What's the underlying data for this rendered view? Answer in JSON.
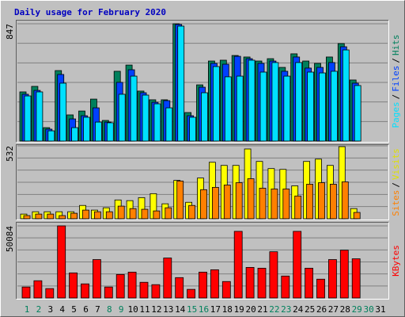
{
  "chart_data": [
    {
      "type": "bar",
      "title": "Daily usage for February 2020",
      "ylim": [
        0,
        847
      ],
      "yticks": [
        847
      ],
      "separator": "/",
      "series": [
        {
          "name": "Hits",
          "color": "#00805c",
          "values": [
            355,
            395,
            97,
            509,
            189,
            217,
            303,
            149,
            504,
            549,
            361,
            298,
            298,
            847,
            206,
            406,
            578,
            584,
            618,
            607,
            578,
            595,
            532,
            630,
            578,
            561,
            607,
            704,
            441,
            null,
            null
          ]
        },
        {
          "name": "Files",
          "color": "#0040ff",
          "values": [
            338,
            366,
            86,
            481,
            160,
            183,
            240,
            137,
            424,
            515,
            349,
            280,
            292,
            842,
            183,
            389,
            561,
            555,
            612,
            595,
            561,
            578,
            504,
            607,
            527,
            532,
            567,
            681,
            418,
            null,
            null
          ]
        },
        {
          "name": "Pages",
          "color": "#00e0ff",
          "values": [
            326,
            355,
            74,
            418,
            97,
            172,
            137,
            132,
            338,
            469,
            332,
            269,
            240,
            830,
            172,
            349,
            538,
            464,
            469,
            584,
            498,
            567,
            469,
            567,
            498,
            492,
            504,
            658,
            401,
            null,
            null
          ]
        }
      ]
    },
    {
      "type": "bar",
      "ylim": [
        0,
        532
      ],
      "yticks": [
        532
      ],
      "separator": "/",
      "series": [
        {
          "name": "Visits",
          "color": "#ffff00",
          "values": [
            34,
            51,
            51,
            51,
            51,
            97,
            63,
            80,
            137,
            132,
            154,
            183,
            109,
            280,
            120,
            297,
            412,
            389,
            389,
            509,
            418,
            366,
            360,
            240,
            418,
            435,
            389,
            526,
            74,
            null,
            null
          ]
        },
        {
          "name": "Sites",
          "color": "#ff8000",
          "values": [
            23,
            34,
            34,
            23,
            40,
            63,
            51,
            51,
            92,
            74,
            69,
            57,
            80,
            275,
            97,
            212,
            229,
            246,
            263,
            292,
            223,
            217,
            217,
            166,
            252,
            263,
            252,
            269,
            46,
            null,
            null
          ]
        }
      ]
    },
    {
      "type": "bar",
      "ylim": [
        0,
        50084
      ],
      "yticks": [
        50084
      ],
      "categories": [
        1,
        2,
        3,
        4,
        5,
        6,
        7,
        8,
        9,
        10,
        11,
        12,
        13,
        14,
        15,
        16,
        17,
        18,
        19,
        20,
        21,
        22,
        23,
        24,
        25,
        26,
        27,
        28,
        29,
        30,
        31
      ],
      "category_colors": [
        "#00805c",
        "#00805c",
        "#000000",
        "#000000",
        "#000000",
        "#000000",
        "#000000",
        "#00805c",
        "#00805c",
        "#000000",
        "#000000",
        "#000000",
        "#000000",
        "#000000",
        "#00805c",
        "#00805c",
        "#000000",
        "#000000",
        "#000000",
        "#000000",
        "#000000",
        "#00805c",
        "#00805c",
        "#000000",
        "#000000",
        "#000000",
        "#000000",
        "#000000",
        "#00805c",
        "#00805c",
        "#000000"
      ],
      "series": [
        {
          "name": "KBytes",
          "color": "#ff0000",
          "values": [
            7622,
            11977,
            6533,
            50084,
            17421,
            9799,
            26676,
            7622,
            16332,
            17965,
            10888,
            9255,
            27764,
            14154,
            5988,
            17965,
            19598,
            11432,
            46274,
            21232,
            20687,
            32120,
            15243,
            46274,
            20687,
            13066,
            26676,
            33208,
            27220,
            null,
            null
          ]
        }
      ]
    }
  ]
}
